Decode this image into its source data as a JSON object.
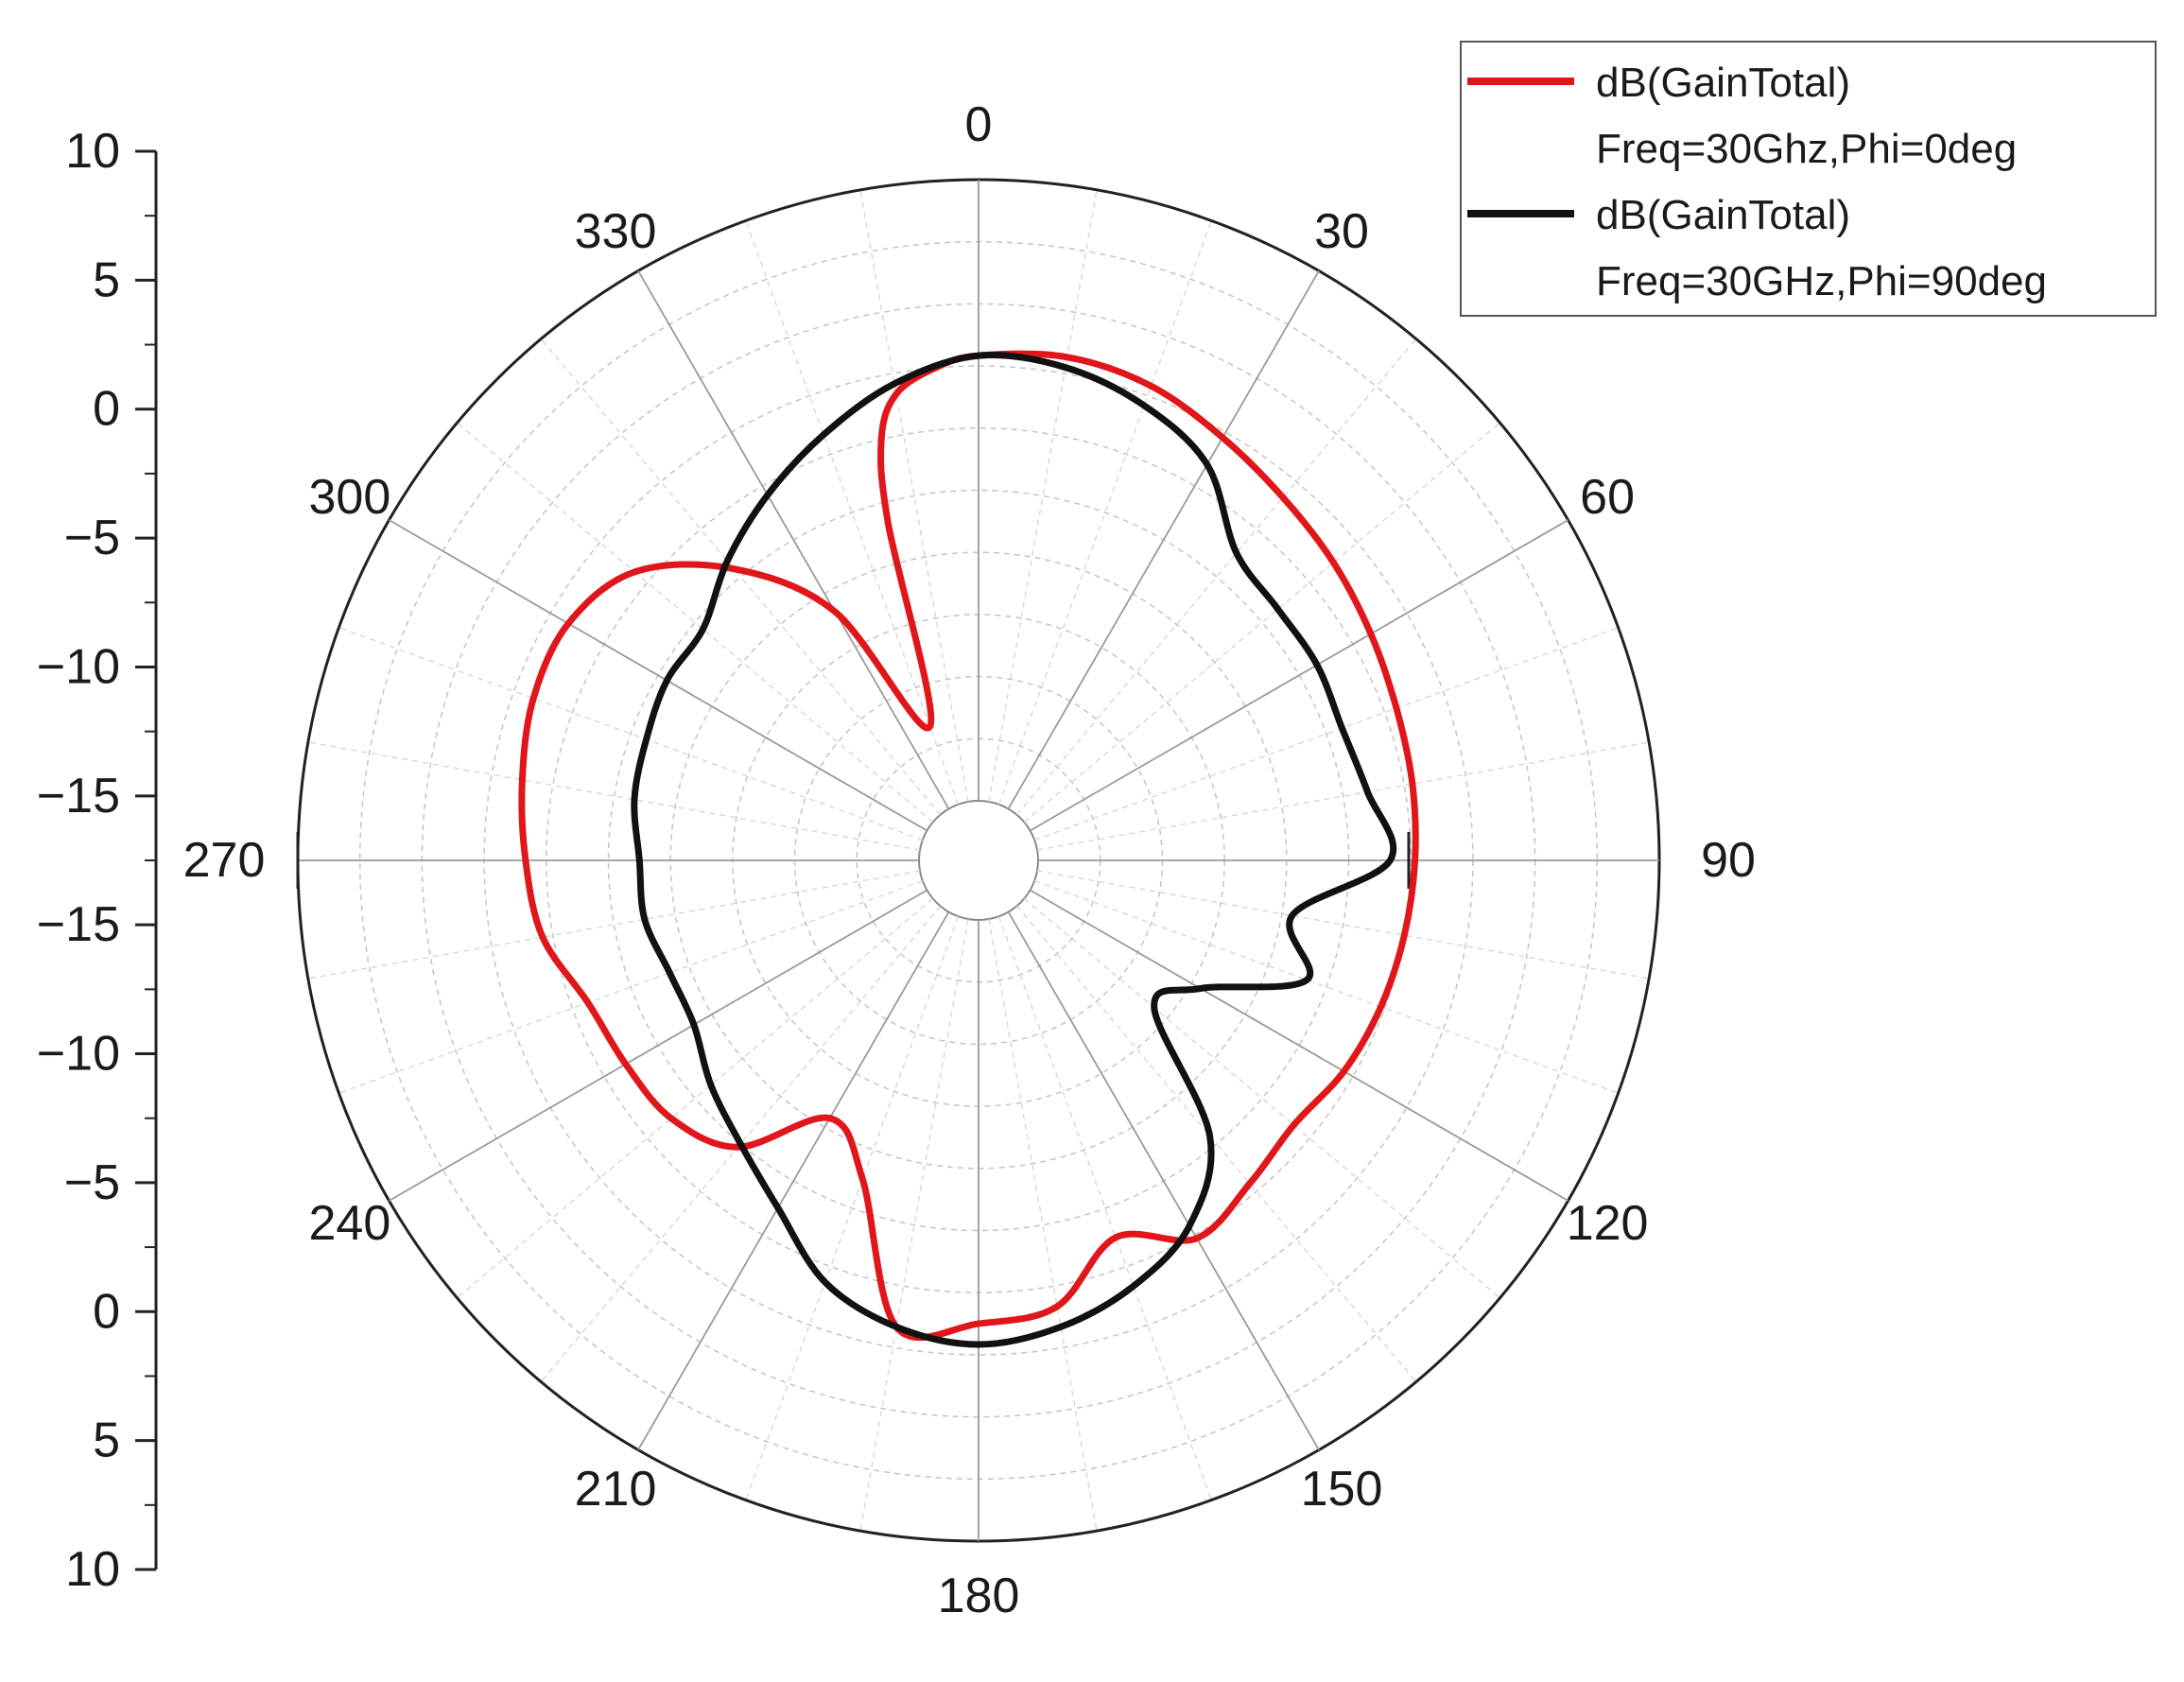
{
  "chart_data": {
    "type": "polar-line",
    "title": "",
    "angle_unit": "deg",
    "angle_ticks": [
      0,
      30,
      60,
      90,
      120,
      150,
      180,
      210,
      240,
      270,
      300,
      330
    ],
    "angle_tick_labels": [
      "0",
      "30",
      "60",
      "90",
      "120",
      "150",
      "180",
      "210",
      "240",
      "270",
      "300",
      "330"
    ],
    "radial_range": [
      -20,
      10
    ],
    "radial_axis_tick_labels": [
      "10",
      "5",
      "0",
      "-5",
      "-10",
      "-15",
      "-15",
      "-10",
      "-5",
      "0",
      "5",
      "10"
    ],
    "grid": true,
    "legend": "top-right",
    "series": [
      {
        "name": "dB(GainTotal)",
        "subtitle": "Freq=30Ghz,Phi=0deg",
        "color": "#e0161b",
        "theta": [
          0,
          10,
          20,
          30,
          40,
          50,
          60,
          70,
          80,
          90,
          100,
          110,
          120,
          130,
          140,
          150,
          160,
          170,
          180,
          190,
          200,
          210,
          220,
          230,
          240,
          250,
          260,
          270,
          280,
          290,
          300,
          310,
          320,
          330,
          340,
          345,
          347,
          350,
          355,
          360
        ],
        "r": [
          1.5,
          1.8,
          1.5,
          0.7,
          0.0,
          -0.5,
          -1.0,
          -1.4,
          -1.6,
          -1.8,
          -2.0,
          -2.2,
          -2.5,
          -3.0,
          -2.5,
          -1.8,
          -3.5,
          -1.0,
          -0.5,
          0.0,
          -6.5,
          -8.5,
          -4.8,
          -3.5,
          -3.2,
          -2.8,
          -1.5,
          -1.0,
          -0.5,
          0.0,
          0.0,
          -1.2,
          -4.5,
          -9.0,
          -16.0,
          -6.0,
          -2.0,
          0.0,
          1.0,
          1.5
        ]
      },
      {
        "name": "dB(GainTotal)",
        "subtitle": "Freq=30GHz,Phi=90deg",
        "color": "#111111",
        "theta": [
          0,
          10,
          20,
          30,
          40,
          50,
          60,
          70,
          80,
          90,
          100,
          110,
          120,
          130,
          140,
          150,
          160,
          170,
          180,
          190,
          200,
          210,
          220,
          230,
          240,
          250,
          260,
          270,
          280,
          290,
          300,
          310,
          320,
          330,
          340,
          350,
          360
        ],
        "r": [
          1.5,
          1.3,
          0.5,
          -0.8,
          -3.5,
          -4.0,
          -4.0,
          -4.2,
          -3.8,
          -3.0,
          -7.5,
          -6.0,
          -10.5,
          -11.8,
          -5.5,
          -2.5,
          -1.0,
          0.0,
          0.5,
          0.0,
          -1.2,
          -3.5,
          -5.0,
          -6.0,
          -7.0,
          -7.0,
          -6.5,
          -6.5,
          -6.0,
          -5.8,
          -5.5,
          -5.5,
          -4.0,
          -2.5,
          -1.0,
          0.5,
          1.5
        ]
      }
    ]
  }
}
